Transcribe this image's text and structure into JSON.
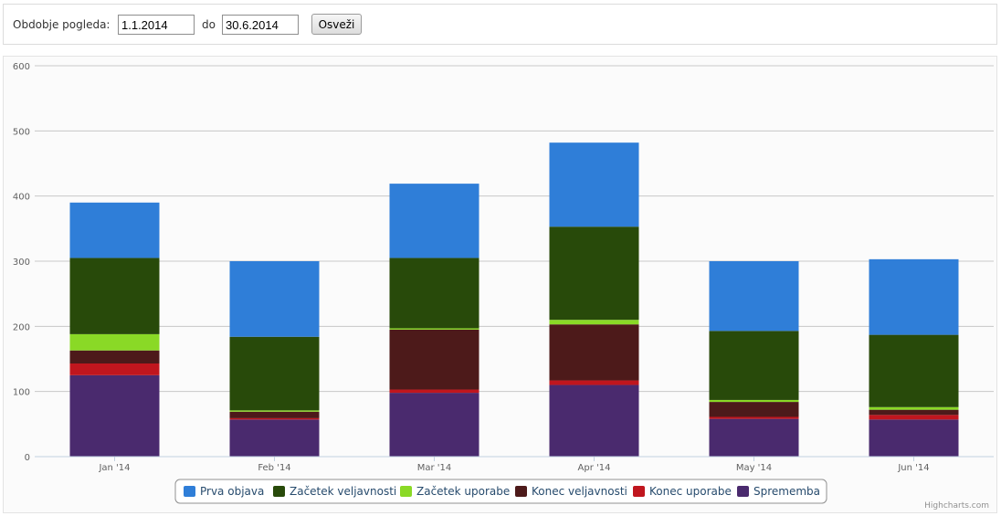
{
  "filter": {
    "period_label": "Obdobje pogleda:",
    "from_value": "1.1.2014",
    "to_label": "do",
    "to_value": "30.6.2014",
    "refresh_label": "Osveži"
  },
  "credits": "Highcharts.com",
  "chart_data": {
    "type": "bar",
    "stacked": true,
    "title": "",
    "xlabel": "",
    "ylabel": "",
    "ylim": [
      0,
      600
    ],
    "yticks": [
      "0",
      "100",
      "200",
      "300",
      "400",
      "500",
      "600"
    ],
    "grid": true,
    "legend_position": "bottom-center",
    "categories": [
      "Jan '14",
      "Feb '14",
      "Mar '14",
      "Apr '14",
      "May '14",
      "Jun '14"
    ],
    "series": [
      {
        "name": "Sprememba",
        "color": "#4a2a6e",
        "values": [
          125,
          57,
          98,
          110,
          58,
          57
        ]
      },
      {
        "name": "Konec uporabe",
        "color": "#c0161e",
        "values": [
          18,
          2,
          5,
          7,
          3,
          7
        ]
      },
      {
        "name": "Konec veljavnosti",
        "color": "#4d1a1a",
        "values": [
          20,
          10,
          92,
          86,
          23,
          8
        ]
      },
      {
        "name": "Začetek uporabe",
        "color": "#8ad926",
        "values": [
          25,
          2,
          2,
          7,
          3,
          4
        ]
      },
      {
        "name": "Začetek veljavnosti",
        "color": "#284a0a",
        "values": [
          117,
          113,
          108,
          143,
          106,
          111
        ]
      },
      {
        "name": "Prva objava",
        "color": "#2f7ed8",
        "values": [
          85,
          116,
          114,
          129,
          107,
          116
        ]
      }
    ],
    "legend_order": [
      "Prva objava",
      "Začetek veljavnosti",
      "Začetek uporabe",
      "Konec veljavnosti",
      "Konec uporabe",
      "Sprememba"
    ]
  }
}
